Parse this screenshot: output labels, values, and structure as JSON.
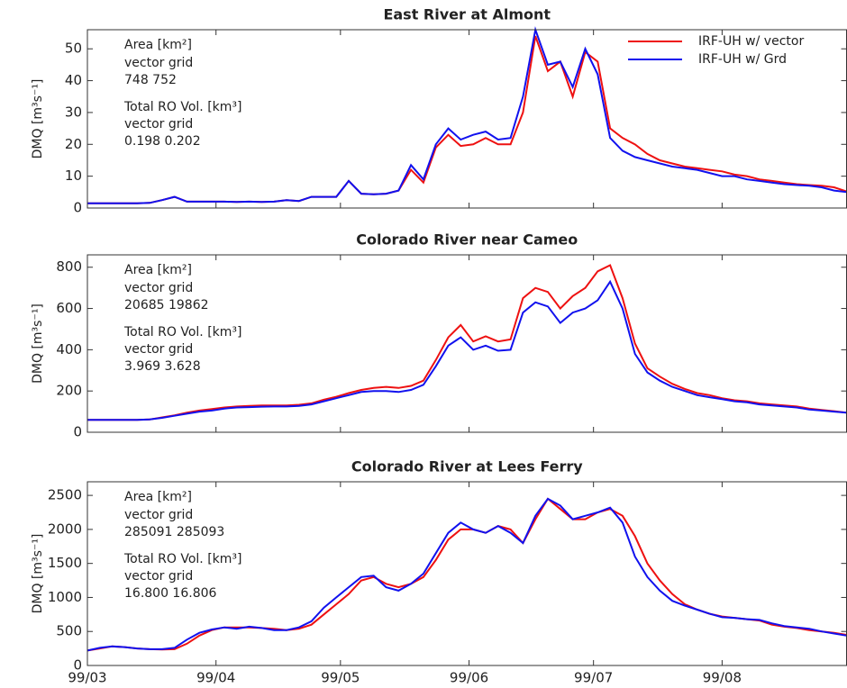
{
  "chart_data": [
    {
      "type": "line",
      "title": "East River at Almont",
      "ylabel": "DMQ [m³s⁻¹]",
      "annotations": [
        "Area [km²]",
        "vector  grid",
        "748     752",
        "Total RO Vol. [km³]",
        "vector    grid",
        "0.198  0.202"
      ],
      "x": [
        0,
        3,
        6,
        9,
        12,
        15,
        18,
        21,
        24,
        27,
        30,
        33,
        36,
        39,
        42,
        45,
        48,
        51,
        54,
        57,
        60,
        63,
        66,
        69,
        72,
        75,
        78,
        81,
        84,
        87,
        90,
        93,
        96,
        99,
        102,
        105,
        108,
        111,
        114,
        117,
        120,
        123,
        126,
        129,
        132,
        135,
        138,
        141,
        144,
        147,
        150,
        153,
        156,
        159,
        162,
        165,
        168,
        171,
        174,
        177,
        180,
        183
      ],
      "series": [
        {
          "name": "IRF-UH w/ vector",
          "color": "#ee1111",
          "values": [
            1.5,
            1.5,
            1.5,
            1.5,
            1.5,
            1.6,
            2.5,
            3.5,
            2,
            2,
            2,
            2,
            1.9,
            2,
            1.9,
            2,
            2.5,
            2.2,
            3.5,
            3.5,
            3.5,
            8.5,
            4.5,
            4.3,
            4.5,
            5.5,
            12,
            8,
            19,
            23,
            19.5,
            20,
            22,
            20,
            20,
            30,
            54,
            43,
            46,
            35,
            49,
            46,
            25,
            22,
            20,
            17,
            15,
            14,
            13,
            12.5,
            12,
            11.5,
            10.5,
            10,
            9,
            8.5,
            8,
            7.5,
            7.2,
            7,
            6.5,
            5.2
          ]
        },
        {
          "name": "IRF-UH w/ Grd",
          "color": "#1111ee",
          "values": [
            1.5,
            1.5,
            1.5,
            1.5,
            1.5,
            1.6,
            2.5,
            3.5,
            2,
            2,
            2,
            2,
            1.9,
            2,
            1.9,
            2,
            2.5,
            2.2,
            3.5,
            3.5,
            3.5,
            8.5,
            4.5,
            4.3,
            4.5,
            5.5,
            13.5,
            9,
            20,
            25,
            21.5,
            23,
            24,
            21.5,
            22,
            35,
            56,
            45,
            46,
            38,
            50,
            42,
            22,
            18,
            16,
            15,
            14,
            13,
            12.5,
            12,
            11,
            10,
            10,
            9,
            8.5,
            8,
            7.5,
            7.2,
            7,
            6.5,
            5.5,
            5
          ]
        }
      ],
      "xlim": [
        0,
        183
      ],
      "xticks": [
        0,
        31,
        61,
        92,
        122,
        153
      ],
      "xticklabels": false,
      "ylim": [
        0,
        56
      ],
      "yticks": [
        0,
        10,
        20,
        30,
        40,
        50
      ],
      "legend": "upper right"
    },
    {
      "type": "line",
      "title": "Colorado River near Cameo",
      "ylabel": "DMQ [m³s⁻¹]",
      "annotations": [
        "Area [km²]",
        "vector  grid",
        "20685  19862",
        "Total RO Vol. [km³]",
        "vector    grid",
        "3.969  3.628"
      ],
      "x": [
        0,
        3,
        6,
        9,
        12,
        15,
        18,
        21,
        24,
        27,
        30,
        33,
        36,
        39,
        42,
        45,
        48,
        51,
        54,
        57,
        60,
        63,
        66,
        69,
        72,
        75,
        78,
        81,
        84,
        87,
        90,
        93,
        96,
        99,
        102,
        105,
        108,
        111,
        114,
        117,
        120,
        123,
        126,
        129,
        132,
        135,
        138,
        141,
        144,
        147,
        150,
        153,
        156,
        159,
        162,
        165,
        168,
        171,
        174,
        177,
        180,
        183
      ],
      "series": [
        {
          "color": "#ee1111",
          "values": [
            60,
            60,
            60,
            60,
            60,
            62,
            72,
            82,
            95,
            105,
            112,
            120,
            125,
            128,
            130,
            130,
            130,
            133,
            140,
            158,
            172,
            190,
            205,
            215,
            220,
            215,
            225,
            250,
            350,
            460,
            520,
            440,
            465,
            440,
            450,
            650,
            700,
            680,
            600,
            660,
            700,
            780,
            810,
            650,
            430,
            310,
            270,
            235,
            210,
            190,
            180,
            165,
            155,
            150,
            140,
            135,
            130,
            125,
            115,
            108,
            102,
            95
          ]
        },
        {
          "color": "#1111ee",
          "values": [
            60,
            60,
            60,
            60,
            60,
            62,
            70,
            80,
            90,
            100,
            105,
            115,
            120,
            122,
            124,
            125,
            125,
            128,
            135,
            150,
            165,
            180,
            195,
            200,
            200,
            195,
            205,
            230,
            320,
            420,
            460,
            400,
            420,
            395,
            400,
            580,
            630,
            610,
            530,
            580,
            600,
            640,
            730,
            600,
            380,
            290,
            250,
            220,
            200,
            180,
            170,
            160,
            150,
            145,
            135,
            130,
            125,
            120,
            110,
            105,
            100,
            95
          ]
        }
      ],
      "xlim": [
        0,
        183
      ],
      "xticks": [
        0,
        31,
        61,
        92,
        122,
        153
      ],
      "xticklabels": false,
      "ylim": [
        0,
        860
      ],
      "yticks": [
        0,
        200,
        400,
        600,
        800
      ]
    },
    {
      "type": "line",
      "title": "Colorado River at Lees Ferry",
      "ylabel": "DMQ [m³s⁻¹]",
      "annotations": [
        "Area [km²]",
        "vector  grid",
        "285091  285093",
        "Total RO Vol. [km³]",
        "vector    grid",
        "16.800  16.806"
      ],
      "x": [
        0,
        3,
        6,
        9,
        12,
        15,
        18,
        21,
        24,
        27,
        30,
        33,
        36,
        39,
        42,
        45,
        48,
        51,
        54,
        57,
        60,
        63,
        66,
        69,
        72,
        75,
        78,
        81,
        84,
        87,
        90,
        93,
        96,
        99,
        102,
        105,
        108,
        111,
        114,
        117,
        120,
        123,
        126,
        129,
        132,
        135,
        138,
        141,
        144,
        147,
        150,
        153,
        156,
        159,
        162,
        165,
        168,
        171,
        174,
        177,
        180,
        183
      ],
      "series": [
        {
          "color": "#ee1111",
          "values": [
            220,
            250,
            280,
            270,
            250,
            240,
            235,
            240,
            320,
            440,
            520,
            560,
            560,
            560,
            550,
            540,
            520,
            540,
            600,
            750,
            900,
            1050,
            1250,
            1300,
            1200,
            1150,
            1200,
            1300,
            1550,
            1850,
            2000,
            2000,
            1950,
            2050,
            2000,
            1800,
            2150,
            2450,
            2300,
            2150,
            2150,
            2250,
            2300,
            2200,
            1900,
            1500,
            1250,
            1050,
            900,
            820,
            760,
            720,
            700,
            680,
            660,
            600,
            570,
            550,
            520,
            500,
            480,
            450
          ]
        },
        {
          "color": "#1111ee",
          "values": [
            220,
            260,
            280,
            270,
            250,
            240,
            240,
            260,
            380,
            480,
            530,
            560,
            540,
            570,
            550,
            520,
            520,
            560,
            650,
            850,
            1000,
            1150,
            1300,
            1320,
            1150,
            1100,
            1200,
            1350,
            1650,
            1950,
            2100,
            2000,
            1950,
            2050,
            1950,
            1800,
            2200,
            2450,
            2350,
            2150,
            2200,
            2250,
            2320,
            2100,
            1600,
            1300,
            1100,
            950,
            880,
            820,
            760,
            710,
            700,
            680,
            670,
            620,
            580,
            560,
            540,
            500,
            470,
            440
          ]
        }
      ],
      "xlim": [
        0,
        183
      ],
      "xticks": [
        {
          "value": 0,
          "label": "99/03"
        },
        {
          "value": 31,
          "label": "99/04"
        },
        {
          "value": 61,
          "label": "99/05"
        },
        {
          "value": 92,
          "label": "99/06"
        },
        {
          "value": 122,
          "label": "99/07"
        },
        {
          "value": 153,
          "label": "99/08"
        }
      ],
      "ylim": [
        0,
        2700
      ],
      "yticks": [
        0,
        500,
        1000,
        1500,
        2000,
        2500
      ]
    }
  ]
}
